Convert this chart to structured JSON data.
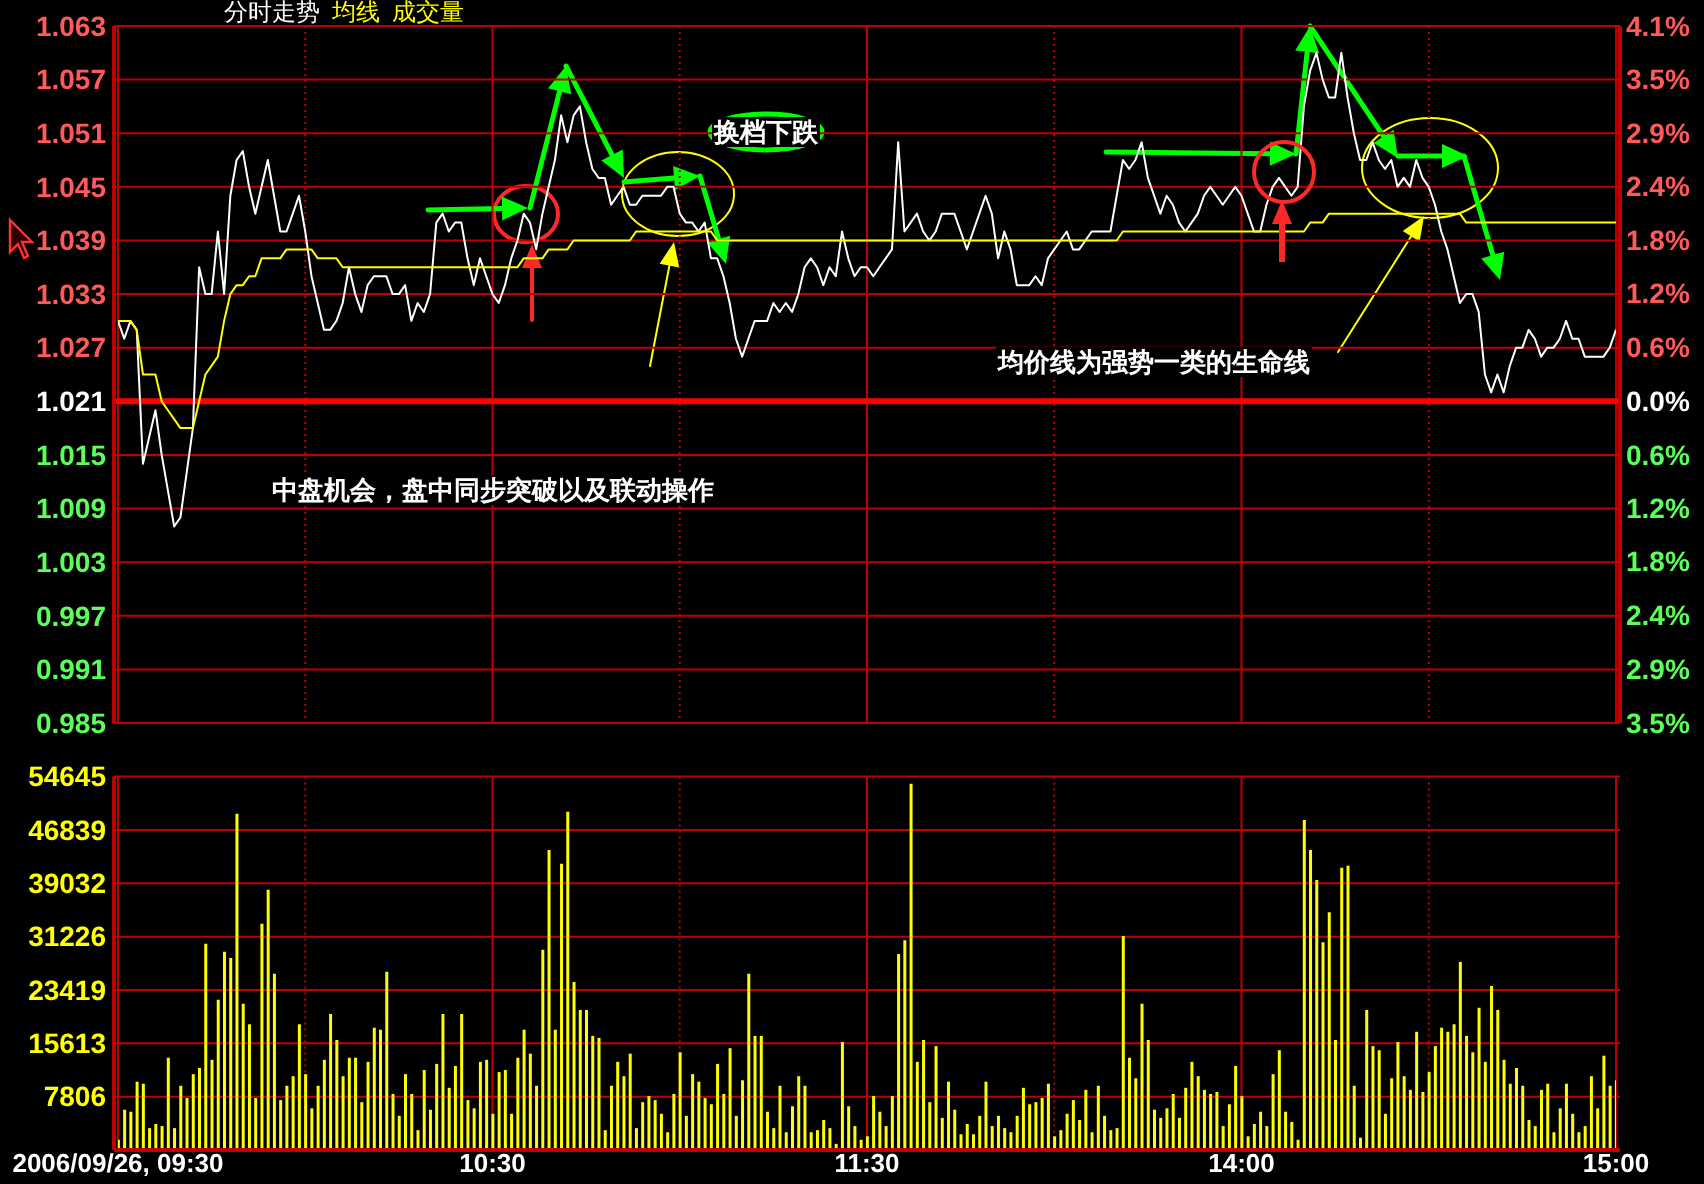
{
  "chart_data": [
    {
      "type": "line",
      "legend": "top left",
      "grid": true,
      "tick_labels": "y",
      "annotations": [
        "换档下跌",
        "均价线为强势一类的生命线",
        "中盘机会，盘中同步突破以及联动操作"
      ],
      "categories": [
        null,
        null,
        null,
        null,
        null,
        null,
        null,
        null,
        null,
        null,
        null,
        null,
        null,
        null,
        null,
        null,
        null,
        null,
        null,
        null,
        null,
        null,
        null,
        null,
        null,
        null,
        null,
        null,
        null,
        null,
        null,
        null,
        null,
        null,
        null,
        null,
        null,
        null,
        null,
        null,
        null,
        null,
        null,
        null,
        null,
        null,
        null,
        null,
        null,
        null,
        null,
        null,
        null,
        null,
        null,
        null,
        null,
        null,
        null,
        null,
        null,
        null,
        null,
        null,
        null,
        null,
        null,
        null,
        null,
        null,
        null,
        null,
        null,
        null,
        null,
        null,
        null,
        null,
        null,
        null,
        null,
        null,
        null,
        null,
        null,
        null,
        null,
        null,
        null,
        null,
        null,
        null,
        null,
        null,
        null,
        null,
        null,
        null,
        null,
        null,
        null,
        null,
        null,
        null,
        null,
        null,
        null,
        null,
        null,
        null,
        null,
        null,
        null,
        null,
        null,
        null,
        null,
        null,
        null,
        null,
        null,
        null,
        null,
        null,
        null,
        null,
        null,
        null,
        null,
        null,
        null,
        null,
        null,
        null,
        null,
        null,
        null,
        null,
        null,
        null,
        null,
        null,
        null,
        null,
        null,
        null,
        null,
        null,
        null,
        null,
        null,
        null,
        null,
        null,
        null,
        null,
        null,
        null,
        null,
        null,
        null,
        null,
        null,
        null,
        null,
        null,
        null,
        null,
        null,
        null,
        null,
        null,
        null,
        null,
        null,
        null,
        null,
        null,
        null,
        null,
        null,
        null,
        null,
        null,
        null,
        null,
        null,
        null,
        null,
        null,
        null,
        null,
        null,
        null,
        null,
        null,
        null,
        null,
        null,
        null,
        null,
        null,
        null,
        null,
        null,
        null,
        null,
        null,
        null,
        null,
        null,
        null,
        null,
        null,
        null,
        null,
        null,
        null,
        null,
        null,
        null,
        null,
        null,
        null,
        null,
        null,
        null,
        null,
        null,
        null,
        null,
        null,
        null,
        null,
        null,
        null,
        null,
        null,
        null,
        null,
        null
      ],
      "ylim": [
        0.985,
        1.063
      ],
      "yticks": [
        0.985,
        0.991,
        0.997,
        1.003,
        1.009,
        1.015,
        1.021,
        1.027,
        1.033,
        1.039,
        1.045,
        1.051,
        1.057,
        1.063
      ],
      "y2lim": [
        -3.53,
        4.11
      ],
      "y2ticks": [
        {
          "value": -3.53,
          "label": "3.5%"
        },
        {
          "value": -2.94,
          "label": "2.9%"
        },
        {
          "value": -2.35,
          "label": "2.4%"
        },
        {
          "value": -1.76,
          "label": "1.8%"
        },
        {
          "value": -1.18,
          "label": "1.2%"
        },
        {
          "value": -0.59,
          "label": "0.6%"
        },
        {
          "value": 0,
          "label": "0.0%"
        },
        {
          "value": 0.59,
          "label": "0.6%"
        },
        {
          "value": 1.18,
          "label": "1.2%"
        },
        {
          "value": 1.76,
          "label": "1.8%"
        },
        {
          "value": 2.35,
          "label": "2.4%"
        },
        {
          "value": 2.94,
          "label": "2.9%"
        },
        {
          "value": 3.53,
          "label": "3.5%"
        },
        {
          "value": 4.11,
          "label": "4.1%"
        }
      ],
      "ref_lines": [
        {
          "axis": "y",
          "value": 1.021,
          "color": "#ff0000"
        }
      ],
      "series": [
        {
          "name": "分时走势",
          "color": "#ffffff",
          "values": [
            1.03,
            1.028,
            1.03,
            1.029,
            1.014,
            1.017,
            1.02,
            1.015,
            1.011,
            1.007,
            1.008,
            1.013,
            1.018,
            1.036,
            1.033,
            1.033,
            1.04,
            1.033,
            1.044,
            1.048,
            1.049,
            1.045,
            1.042,
            1.045,
            1.048,
            1.044,
            1.04,
            1.04,
            1.042,
            1.044,
            1.04,
            1.035,
            1.032,
            1.029,
            1.029,
            1.03,
            1.032,
            1.036,
            1.033,
            1.031,
            1.034,
            1.035,
            1.035,
            1.035,
            1.033,
            1.033,
            1.034,
            1.03,
            1.032,
            1.031,
            1.033,
            1.041,
            1.042,
            1.04,
            1.041,
            1.041,
            1.037,
            1.034,
            1.037,
            1.035,
            1.033,
            1.032,
            1.034,
            1.037,
            1.039,
            1.042,
            1.041,
            1.038,
            1.042,
            1.045,
            1.048,
            1.053,
            1.05,
            1.053,
            1.054,
            1.05,
            1.047,
            1.046,
            1.046,
            1.043,
            1.044,
            1.045,
            1.043,
            1.043,
            1.044,
            1.044,
            1.044,
            1.044,
            1.045,
            1.045,
            1.042,
            1.041,
            1.041,
            1.04,
            1.041,
            1.037,
            1.037,
            1.035,
            1.032,
            1.028,
            1.026,
            1.028,
            1.03,
            1.03,
            1.03,
            1.032,
            1.031,
            1.032,
            1.031,
            1.033,
            1.036,
            1.037,
            1.036,
            1.034,
            1.036,
            1.035,
            1.04,
            1.037,
            1.035,
            1.036,
            1.036,
            1.035,
            1.036,
            1.037,
            1.038,
            1.05,
            1.04,
            1.041,
            1.042,
            1.04,
            1.039,
            1.04,
            1.042,
            1.042,
            1.042,
            1.04,
            1.038,
            1.04,
            1.042,
            1.044,
            1.042,
            1.037,
            1.04,
            1.038,
            1.034,
            1.034,
            1.034,
            1.035,
            1.034,
            1.037,
            1.038,
            1.039,
            1.04,
            1.038,
            1.038,
            1.039,
            1.04,
            1.04,
            1.04,
            1.04,
            1.044,
            1.048,
            1.047,
            1.048,
            1.05,
            1.046,
            1.044,
            1.042,
            1.044,
            1.043,
            1.041,
            1.04,
            1.041,
            1.042,
            1.044,
            1.045,
            1.044,
            1.043,
            1.044,
            1.045,
            1.044,
            1.042,
            1.04,
            1.04,
            1.043,
            1.045,
            1.046,
            1.045,
            1.044,
            1.045,
            1.054,
            1.058,
            1.06,
            1.057,
            1.055,
            1.055,
            1.06,
            1.055,
            1.051,
            1.048,
            1.048,
            1.05,
            1.048,
            1.047,
            1.048,
            1.045,
            1.046,
            1.045,
            1.048,
            1.046,
            1.045,
            1.043,
            1.04,
            1.038,
            1.035,
            1.032,
            1.033,
            1.033,
            1.031,
            1.024,
            1.022,
            1.024,
            1.022,
            1.025,
            1.027,
            1.027,
            1.029,
            1.028,
            1.026,
            1.027,
            1.027,
            1.028,
            1.03,
            1.028,
            1.028,
            1.026,
            1.026,
            1.026,
            1.026,
            1.027,
            1.029
          ]
        },
        {
          "name": "均线",
          "color": "#ffff00",
          "values": [
            1.03,
            1.03,
            1.03,
            1.029,
            1.024,
            1.024,
            1.024,
            1.021,
            1.02,
            1.019,
            1.018,
            1.018,
            1.018,
            1.021,
            1.024,
            1.025,
            1.026,
            1.03,
            1.033,
            1.034,
            1.034,
            1.035,
            1.035,
            1.037,
            1.037,
            1.037,
            1.037,
            1.038,
            1.038,
            1.038,
            1.038,
            1.038,
            1.037,
            1.037,
            1.037,
            1.037,
            1.036,
            1.036,
            1.036,
            1.036,
            1.036,
            1.036,
            1.036,
            1.036,
            1.036,
            1.036,
            1.036,
            1.036,
            1.036,
            1.036,
            1.036,
            1.036,
            1.036,
            1.036,
            1.036,
            1.036,
            1.036,
            1.036,
            1.036,
            1.036,
            1.036,
            1.036,
            1.036,
            1.036,
            1.036,
            1.037,
            1.037,
            1.037,
            1.037,
            1.038,
            1.038,
            1.038,
            1.038,
            1.039,
            1.039,
            1.039,
            1.039,
            1.039,
            1.039,
            1.039,
            1.039,
            1.039,
            1.039,
            1.04,
            1.04,
            1.04,
            1.04,
            1.04,
            1.04,
            1.04,
            1.04,
            1.04,
            1.04,
            1.04,
            1.04,
            1.04,
            1.039,
            1.039,
            1.039,
            1.039,
            1.039,
            1.039,
            1.039,
            1.039,
            1.039,
            1.039,
            1.039,
            1.039,
            1.039,
            1.039,
            1.039,
            1.039,
            1.039,
            1.039,
            1.039,
            1.039,
            1.039,
            1.039,
            1.039,
            1.039,
            1.039,
            1.039,
            1.039,
            1.039,
            1.039,
            1.039,
            1.039,
            1.039,
            1.039,
            1.039,
            1.039,
            1.039,
            1.039,
            1.039,
            1.039,
            1.039,
            1.039,
            1.039,
            1.039,
            1.039,
            1.039,
            1.039,
            1.039,
            1.039,
            1.039,
            1.039,
            1.039,
            1.039,
            1.039,
            1.039,
            1.039,
            1.039,
            1.039,
            1.039,
            1.039,
            1.039,
            1.039,
            1.039,
            1.039,
            1.039,
            1.039,
            1.04,
            1.04,
            1.04,
            1.04,
            1.04,
            1.04,
            1.04,
            1.04,
            1.04,
            1.04,
            1.04,
            1.04,
            1.04,
            1.04,
            1.04,
            1.04,
            1.04,
            1.04,
            1.04,
            1.04,
            1.04,
            1.04,
            1.04,
            1.04,
            1.04,
            1.04,
            1.04,
            1.04,
            1.04,
            1.04,
            1.041,
            1.041,
            1.041,
            1.042,
            1.042,
            1.042,
            1.042,
            1.042,
            1.042,
            1.042,
            1.042,
            1.042,
            1.042,
            1.042,
            1.042,
            1.042,
            1.042,
            1.042,
            1.042,
            1.042,
            1.042,
            1.042,
            1.042,
            1.042,
            1.042,
            1.041,
            1.041,
            1.041,
            1.041,
            1.041,
            1.041,
            1.041,
            1.041,
            1.041,
            1.041,
            1.041,
            1.041,
            1.041,
            1.041,
            1.041,
            1.041,
            1.041,
            1.041,
            1.041,
            1.041,
            1.041,
            1.041,
            1.041,
            1.041,
            1.041
          ]
        }
      ]
    },
    {
      "type": "bar",
      "legend": "top left",
      "grid": true,
      "categories": [
        "2006/09/26, 09:30",
        null,
        null,
        null,
        null,
        null,
        null,
        null,
        null,
        null,
        null,
        null,
        null,
        null,
        null,
        null,
        null,
        null,
        null,
        null,
        null,
        null,
        null,
        null,
        null,
        null,
        null,
        null,
        null,
        null,
        null,
        null,
        null,
        null,
        null,
        null,
        null,
        null,
        null,
        null,
        null,
        null,
        null,
        null,
        null,
        null,
        null,
        null,
        null,
        null,
        null,
        null,
        null,
        null,
        null,
        null,
        null,
        null,
        null,
        null,
        "10:30",
        null,
        null,
        null,
        null,
        null,
        null,
        null,
        null,
        null,
        null,
        null,
        null,
        null,
        null,
        null,
        null,
        null,
        null,
        null,
        null,
        null,
        null,
        null,
        null,
        null,
        null,
        null,
        null,
        null,
        null,
        null,
        null,
        null,
        null,
        null,
        null,
        null,
        null,
        null,
        null,
        null,
        null,
        null,
        null,
        null,
        null,
        null,
        null,
        null,
        null,
        null,
        null,
        null,
        null,
        null,
        null,
        null,
        null,
        null,
        "11:30",
        null,
        null,
        null,
        null,
        null,
        null,
        null,
        null,
        null,
        null,
        null,
        null,
        null,
        null,
        null,
        null,
        null,
        null,
        null,
        null,
        null,
        null,
        null,
        null,
        null,
        null,
        null,
        null,
        null,
        null,
        null,
        null,
        null,
        null,
        null,
        null,
        null,
        null,
        null,
        null,
        null,
        null,
        null,
        null,
        null,
        null,
        null,
        null,
        null,
        null,
        null,
        null,
        null,
        null,
        null,
        null,
        null,
        null,
        null,
        "14:00",
        null,
        null,
        null,
        null,
        null,
        null,
        null,
        null,
        null,
        null,
        null,
        null,
        null,
        null,
        null,
        null,
        null,
        null,
        null,
        null,
        null,
        null,
        null,
        null,
        null,
        null,
        null,
        null,
        null,
        null,
        null,
        null,
        null,
        null,
        null,
        null,
        null,
        null,
        null,
        null,
        null,
        null,
        null,
        null,
        null,
        null,
        null,
        null,
        null,
        null,
        null,
        null,
        null,
        null,
        null,
        null,
        null,
        null,
        null,
        "15:00"
      ],
      "ylim": [
        0,
        54645
      ],
      "yticks": [
        7806,
        15613,
        23419,
        31226,
        39032,
        46839,
        54645
      ],
      "series": [
        {
          "name": "成交量",
          "color": "#ffff00",
          "values": [
            1500,
            5900,
            5600,
            10000,
            9700,
            3200,
            3800,
            3500,
            13500,
            3200,
            9400,
            7600,
            11100,
            12000,
            30200,
            13200,
            22000,
            29000,
            28100,
            49200,
            21400,
            18400,
            7600,
            33100,
            38100,
            25800,
            7300,
            9400,
            10800,
            18400,
            11100,
            6100,
            9400,
            13200,
            19900,
            16100,
            10800,
            13500,
            13500,
            7000,
            12900,
            17900,
            17600,
            26100,
            8200,
            5000,
            11100,
            8200,
            2900,
            11700,
            5900,
            12600,
            19900,
            9100,
            12300,
            19900,
            7300,
            6100,
            12900,
            13200,
            5300,
            11400,
            11700,
            5300,
            13500,
            17600,
            14100,
            9400,
            29300,
            43900,
            17600,
            41900,
            49500,
            24600,
            20500,
            20500,
            16700,
            16400,
            2900,
            9400,
            12900,
            10800,
            14100,
            3200,
            7000,
            7900,
            7300,
            5300,
            2600,
            8200,
            14300,
            5000,
            11100,
            10000,
            7600,
            6700,
            12600,
            8200,
            14900,
            5000,
            10200,
            25800,
            16700,
            16700,
            5600,
            3200,
            9400,
            2600,
            6400,
            10800,
            9400,
            2600,
            2900,
            4400,
            3200,
            900,
            15800,
            6400,
            3500,
            1500,
            2000,
            7900,
            5600,
            3500,
            7900,
            28700,
            30700,
            53600,
            12900,
            16100,
            7000,
            15200,
            4700,
            10000,
            5900,
            2300,
            3800,
            2300,
            5000,
            10000,
            3500,
            5000,
            3200,
            2600,
            5000,
            9100,
            6700,
            7000,
            7600,
            9700,
            2000,
            2900,
            5300,
            7300,
            4400,
            8800,
            2600,
            9400,
            5000,
            2900,
            3200,
            31300,
            13500,
            10500,
            21400,
            16100,
            5900,
            4700,
            6100,
            8200,
            4700,
            9100,
            12900,
            10800,
            8800,
            8200,
            8500,
            3500,
            6700,
            12300,
            7900,
            2000,
            3800,
            5600,
            3500,
            11100,
            14600,
            5600,
            4100,
            1500,
            48300,
            43900,
            39500,
            30400,
            34800,
            16100,
            41300,
            41600,
            9400,
            1800,
            20500,
            15200,
            14600,
            5300,
            10500,
            15800,
            10800,
            8800,
            17300,
            8500,
            11400,
            15200,
            17900,
            17300,
            18400,
            27500,
            16700,
            14300,
            20800,
            12900,
            24000,
            20500,
            13200,
            9700,
            12000,
            9400,
            4400,
            3500,
            8800,
            9700,
            2600,
            6100,
            9700,
            5300,
            2600,
            3500,
            10800,
            6100,
            13800,
            9400,
            10200
          ]
        }
      ]
    }
  ]
}
